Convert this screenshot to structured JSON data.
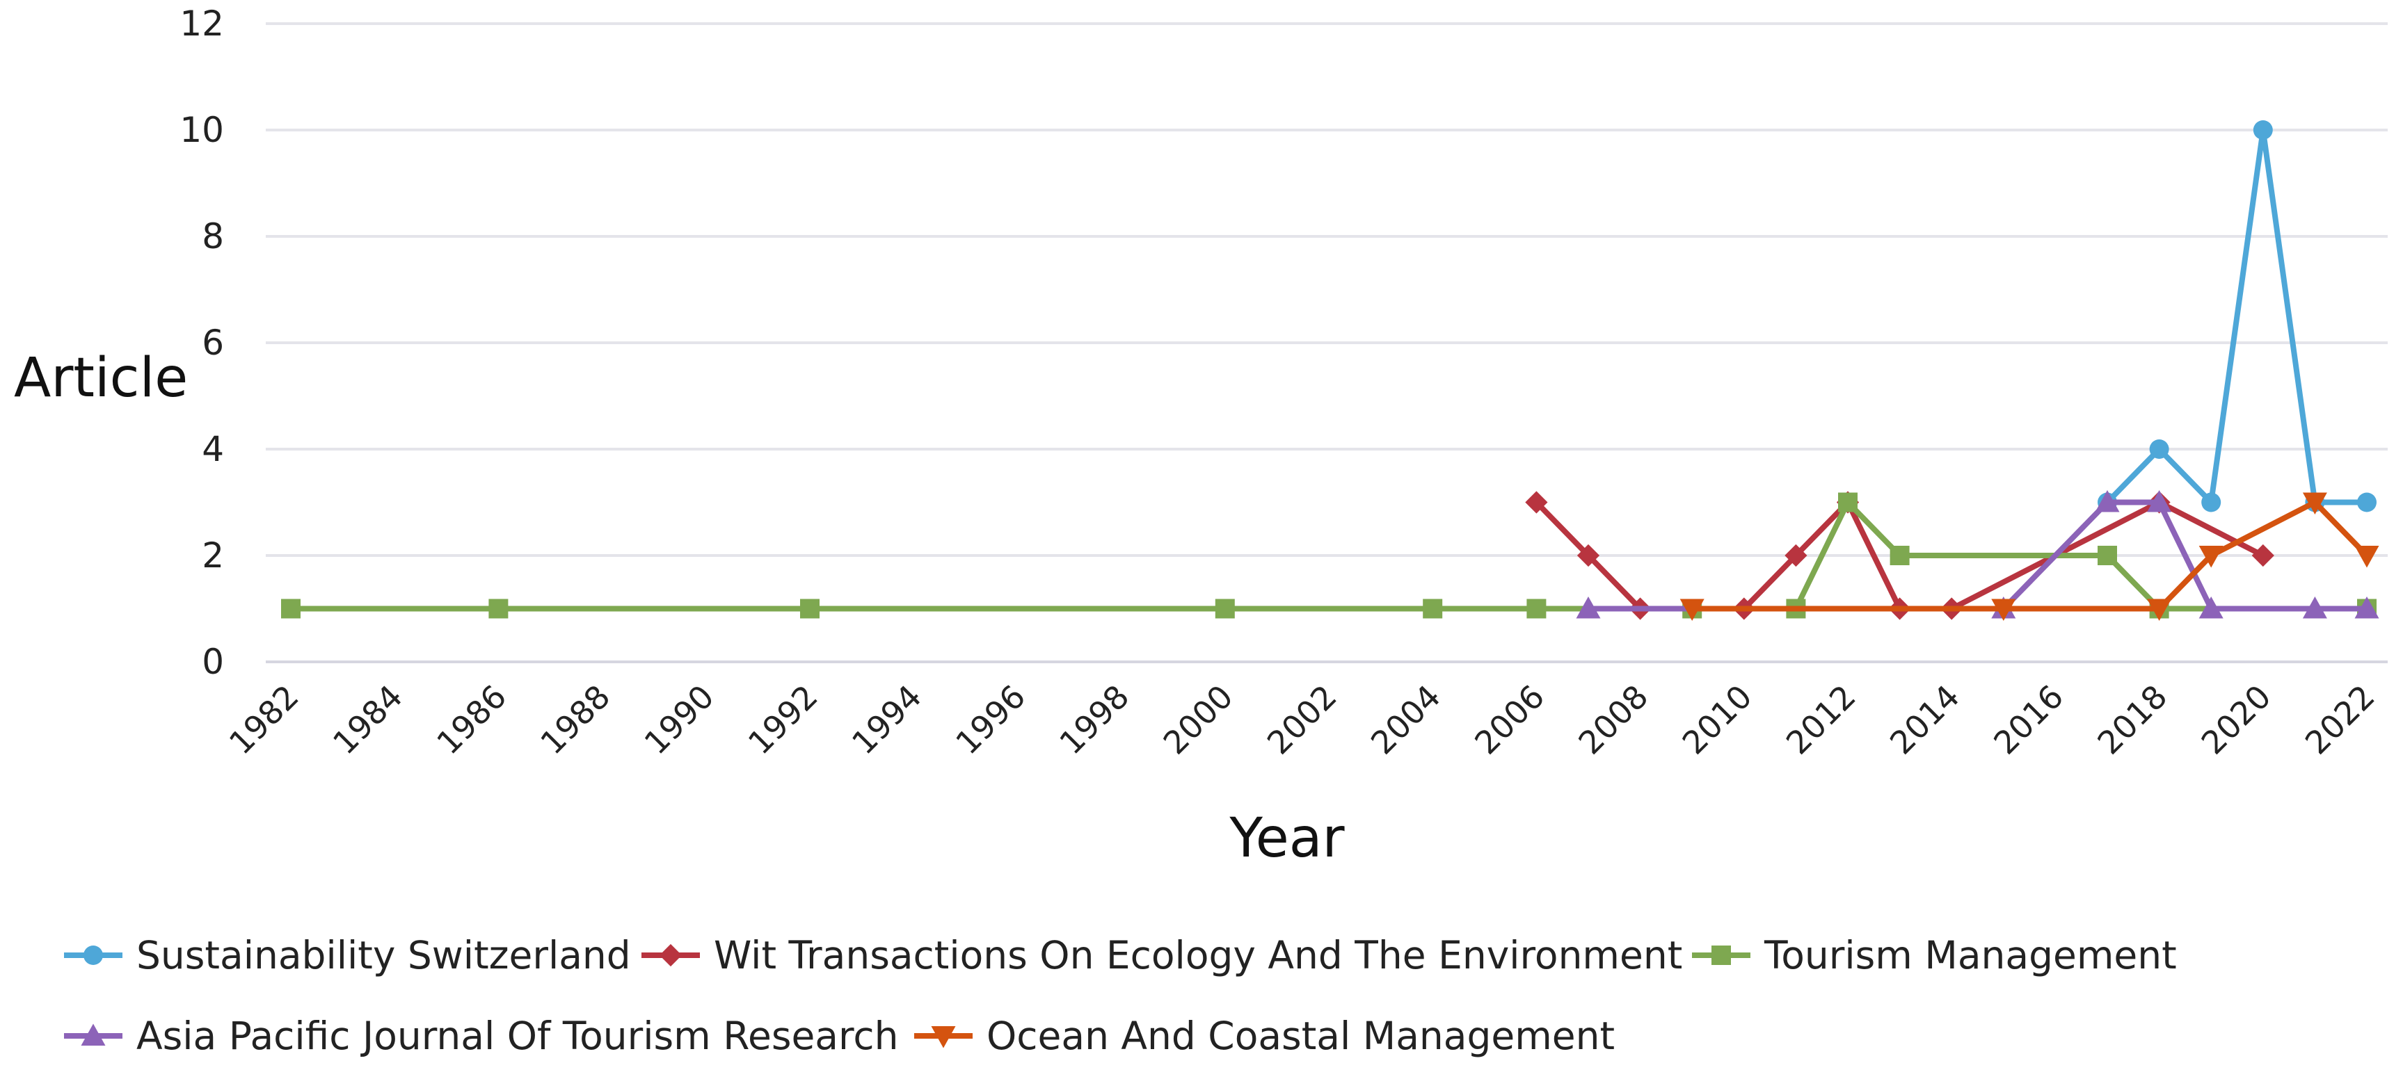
{
  "chart_data": {
    "type": "line",
    "title": "",
    "xlabel": "Year",
    "ylabel": "Article",
    "ylim": [
      0,
      12
    ],
    "xlim": [
      1982,
      2022
    ],
    "y_ticks": [
      "0",
      "2",
      "4",
      "6",
      "8",
      "10",
      "12"
    ],
    "x_ticks": [
      "1982",
      "1984",
      "1986",
      "1988",
      "1990",
      "1992",
      "1994",
      "1996",
      "1998",
      "2000",
      "2002",
      "2004",
      "2006",
      "2008",
      "2010",
      "2012",
      "2014",
      "2016",
      "2018",
      "2020",
      "2022"
    ],
    "grid": "horizontal",
    "legend_position": "bottom",
    "series": [
      {
        "name": "Sustainability Switzerland",
        "color": "#4ea7d8",
        "marker": "circle",
        "points": [
          [
            2017,
            3
          ],
          [
            2018,
            4
          ],
          [
            2019,
            3
          ],
          [
            2020,
            10
          ],
          [
            2021,
            3
          ],
          [
            2022,
            3
          ]
        ]
      },
      {
        "name": "Wit Transactions On Ecology And The Environment",
        "color": "#b8343f",
        "marker": "diamond",
        "points": [
          [
            2006,
            3
          ],
          [
            2007,
            2
          ],
          [
            2008,
            1
          ],
          [
            2010,
            1
          ],
          [
            2011,
            2
          ],
          [
            2012,
            3
          ],
          [
            2013,
            1
          ],
          [
            2014,
            1
          ],
          [
            2018,
            3
          ],
          [
            2020,
            2
          ]
        ]
      },
      {
        "name": "Tourism Management",
        "color": "#7ea850",
        "marker": "square",
        "points": [
          [
            1982,
            1
          ],
          [
            1986,
            1
          ],
          [
            1992,
            1
          ],
          [
            2000,
            1
          ],
          [
            2004,
            1
          ],
          [
            2006,
            1
          ],
          [
            2009,
            1
          ],
          [
            2011,
            1
          ],
          [
            2012,
            3
          ],
          [
            2013,
            2
          ],
          [
            2017,
            2
          ],
          [
            2018,
            1
          ],
          [
            2022,
            1
          ]
        ]
      },
      {
        "name": "Asia Pacific Journal Of Tourism Research",
        "color": "#8c63b8",
        "marker": "triangle-up",
        "points": [
          [
            2007,
            1
          ],
          [
            2015,
            1
          ],
          [
            2017,
            3
          ],
          [
            2018,
            3
          ],
          [
            2019,
            1
          ],
          [
            2021,
            1
          ],
          [
            2022,
            1
          ]
        ]
      },
      {
        "name": "Ocean And Coastal Management",
        "color": "#d4530f",
        "marker": "triangle-down",
        "points": [
          [
            2009,
            1
          ],
          [
            2015,
            1
          ],
          [
            2018,
            1
          ],
          [
            2019,
            2
          ],
          [
            2021,
            3
          ],
          [
            2022,
            2
          ]
        ]
      }
    ]
  }
}
